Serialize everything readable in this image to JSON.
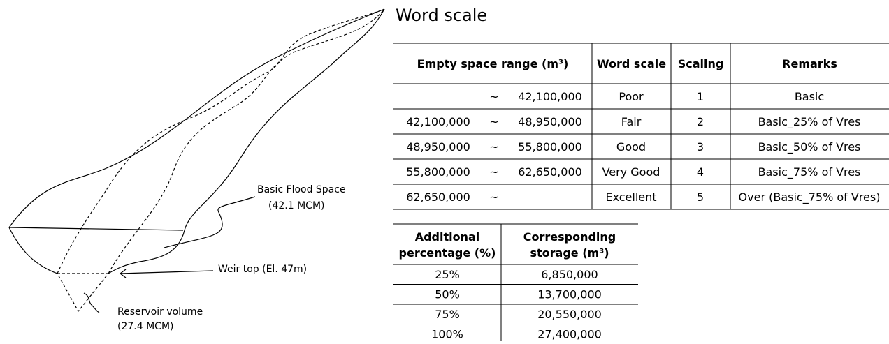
{
  "diagram": {
    "labels": {
      "flood_space": "Basic Flood Space",
      "flood_volume": "(42.1 MCM)",
      "weir": "Weir top (El. 47m)",
      "reservoir": "Reservoir volume",
      "reservoir_volume": "(27.4 MCM)"
    }
  },
  "title": "Word scale",
  "table1": {
    "headers": [
      "Empty space range (m³)",
      "Word scale",
      "Scaling",
      "Remarks"
    ],
    "rows": [
      {
        "sep": "~",
        "to": "42,100,000",
        "word": "Poor",
        "scaling": "1",
        "remarks": "Basic"
      },
      {
        "from": "42,100,000",
        "sep": "~",
        "to": "48,950,000",
        "word": "Fair",
        "scaling": "2",
        "remarks": "Basic_25% of Vres"
      },
      {
        "from": "48,950,000",
        "sep": "~",
        "to": "55,800,000",
        "word": "Good",
        "scaling": "3",
        "remarks": "Basic_50% of Vres"
      },
      {
        "from": "55,800,000",
        "sep": "~",
        "to": "62,650,000",
        "word": "Very Good",
        "scaling": "4",
        "remarks": "Basic_75% of Vres"
      },
      {
        "from": "62,650,000",
        "sep": "~",
        "word": "Excellent",
        "scaling": "5",
        "remarks": "Over (Basic_75% of Vres)"
      }
    ]
  },
  "table2": {
    "headers": [
      [
        "Additional",
        "percentage (%)"
      ],
      [
        "Corresponding",
        "storage (m³)"
      ]
    ],
    "rows": [
      [
        "25%",
        "6,850,000"
      ],
      [
        "50%",
        "13,700,000"
      ],
      [
        "75%",
        "20,550,000"
      ],
      [
        "100%",
        "27,400,000"
      ]
    ]
  }
}
